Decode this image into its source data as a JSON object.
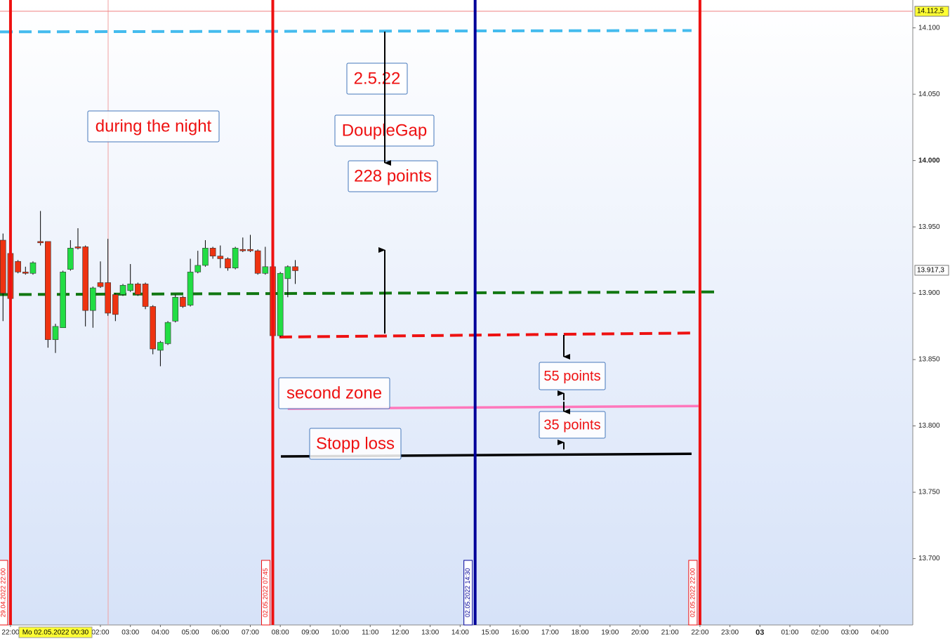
{
  "chart_data": {
    "type": "candlestick",
    "x": [
      -1.25,
      -1,
      -0.75,
      -0.5,
      -0.25,
      0,
      0.25,
      0.5,
      0.75,
      1,
      1.25,
      1.5,
      1.75,
      2,
      2.25,
      2.5,
      2.75,
      3,
      3.25,
      3.5,
      3.75,
      4,
      4.25,
      4.5,
      4.75,
      5,
      5.25,
      5.5,
      5.75,
      6,
      6.25,
      6.5,
      6.75,
      7,
      7.25,
      7.5,
      7.75,
      8,
      8.25,
      8.5
    ],
    "open": [
      13940,
      13930,
      13924,
      13916,
      13915,
      13939,
      13939,
      13865,
      13874,
      13918,
      13935,
      13935,
      13887,
      13908,
      13908,
      13899,
      13899,
      13902,
      13907,
      13907,
      13890,
      13857,
      13862,
      13879,
      13897,
      13891,
      13916,
      13921,
      13934,
      13928,
      13926,
      13919,
      13933,
      13933,
      13932,
      13915,
      13920,
      13868,
      13911,
      13920
    ],
    "high": [
      13945,
      13933,
      13925,
      13920,
      13924,
      13962,
      13939,
      13877,
      13917,
      13940,
      13949,
      13936,
      13905,
      13924,
      13941,
      13900,
      13907,
      13922,
      13908,
      13908,
      13891,
      13864,
      13879,
      13899,
      13898,
      13926,
      13932,
      13940,
      13935,
      13936,
      13927,
      13935,
      13942,
      13944,
      13933,
      13935,
      13924,
      13916,
      13921,
      13925
    ],
    "low": [
      13879,
      13895,
      13915,
      13914,
      13914,
      13936,
      13859,
      13855,
      13874,
      13917,
      13933,
      13875,
      13874,
      13904,
      13883,
      13879,
      13898,
      13901,
      13898,
      13888,
      13854,
      13845,
      13861,
      13878,
      13889,
      13890,
      13915,
      13920,
      13926,
      13919,
      13917,
      13918,
      13931,
      13931,
      13914,
      13914,
      13867,
      13867,
      13897,
      13907
    ],
    "close": [
      13900,
      13896,
      13916,
      13915,
      13923,
      13938,
      13865,
      13875,
      13916,
      13934,
      13934,
      13887,
      13904,
      13905,
      13885,
      13884,
      13906,
      13907,
      13899,
      13890,
      13858,
      13863,
      13878,
      13897,
      13890,
      13916,
      13921,
      13934,
      13928,
      13926,
      13919,
      13934,
      13932,
      13932,
      13915,
      13920,
      13868,
      13915,
      13920,
      13917
    ],
    "up_color": "#22dd44",
    "down_color": "#ee3311",
    "xlim": [
      -1.35,
      29.1
    ],
    "ylim": [
      13650,
      14121
    ],
    "yticks": [
      {
        "value": 13700,
        "label": "13.700"
      },
      {
        "value": 13750,
        "label": "13.750"
      },
      {
        "value": 13800,
        "label": "13.800"
      },
      {
        "value": 13850,
        "label": "13.850"
      },
      {
        "value": 13900,
        "label": "13.900"
      },
      {
        "value": 13950,
        "label": "13.950"
      },
      {
        "value": 14000,
        "label": "14.000"
      },
      {
        "value": 14050,
        "label": "14.050"
      },
      {
        "value": 14100,
        "label": "14.100"
      }
    ],
    "xticks": [
      {
        "value": -1,
        "label": "22:00"
      },
      {
        "value": 2,
        "label": "02:00"
      },
      {
        "value": 3,
        "label": "03:00"
      },
      {
        "value": 4,
        "label": "04:00"
      },
      {
        "value": 5,
        "label": "05:00"
      },
      {
        "value": 6,
        "label": "06:00"
      },
      {
        "value": 7,
        "label": "07:00"
      },
      {
        "value": 8,
        "label": "08:00"
      },
      {
        "value": 9,
        "label": "09:00"
      },
      {
        "value": 10,
        "label": "10:00"
      },
      {
        "value": 11,
        "label": "11:00"
      },
      {
        "value": 12,
        "label": "12:00"
      },
      {
        "value": 13,
        "label": "13:00"
      },
      {
        "value": 14,
        "label": "14:00"
      },
      {
        "value": 15,
        "label": "15:00"
      },
      {
        "value": 16,
        "label": "16:00"
      },
      {
        "value": 17,
        "label": "17:00"
      },
      {
        "value": 18,
        "label": "18:00"
      },
      {
        "value": 19,
        "label": "19:00"
      },
      {
        "value": 20,
        "label": "20:00"
      },
      {
        "value": 21,
        "label": "21:00"
      },
      {
        "value": 22,
        "label": "22:00"
      },
      {
        "value": 23,
        "label": "23:00"
      },
      {
        "value": 24,
        "label": "03"
      },
      {
        "value": 25,
        "label": "01:00"
      },
      {
        "value": 26,
        "label": "02:00"
      },
      {
        "value": 27,
        "label": "03:00"
      },
      {
        "value": 28,
        "label": "04:00"
      }
    ],
    "x_cursor": {
      "value": 0.5,
      "label": "Mo 02.05.2022 00:30"
    },
    "price_labels": [
      {
        "value": 14112.5,
        "label": "14.112,5",
        "color": "#ffff33"
      },
      {
        "value": 13917.3,
        "label": "13.917,3",
        "color": "#ffffff"
      }
    ],
    "vlines": [
      {
        "x": -1,
        "label": "29.04.2022 22:00",
        "color": "#ee1111"
      },
      {
        "x": 7.75,
        "label": "02.05.2022 07:45",
        "color": "#ee1111"
      },
      {
        "x": 14.5,
        "label": "02.05.2022 14:30",
        "color": "#000099"
      },
      {
        "x": 22,
        "label": "02.05.2022 22:00",
        "color": "#ee1111"
      }
    ],
    "levels": [
      {
        "x": [
          -1.35,
          21.72
        ],
        "values": [
          14097,
          14098
        ],
        "color": "#44bbee",
        "dashed": true
      },
      {
        "x": [
          -1.35,
          22.49
        ],
        "values": [
          13899,
          13901
        ],
        "color": "#117711",
        "dashed": true
      },
      {
        "x": [
          7.97,
          21.72
        ],
        "values": [
          13867,
          13870
        ],
        "color": "#ee1111",
        "dashed": true
      },
      {
        "x": [
          8.25,
          21.95
        ],
        "values": [
          13813,
          13815
        ],
        "color": "#ff77bb",
        "dashed": false
      },
      {
        "x": [
          8.02,
          21.72
        ],
        "values": [
          13777,
          13779
        ],
        "color": "#000000",
        "dashed": false
      }
    ],
    "annotations": [
      "2.5.22",
      "during the night",
      "DoupleGap",
      "228 points",
      "55 points",
      "second zone",
      "35 points",
      "Stopp loss"
    ]
  }
}
